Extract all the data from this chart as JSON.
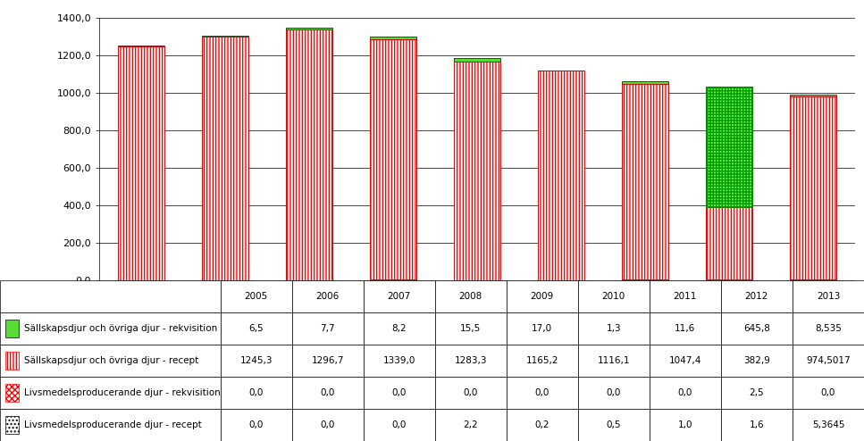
{
  "years": [
    2005,
    2006,
    2007,
    2008,
    2009,
    2010,
    2011,
    2012,
    2013
  ],
  "sallskap_rekvisition": [
    6.5,
    7.7,
    8.2,
    15.5,
    17.0,
    1.3,
    11.6,
    645.8,
    8.535
  ],
  "sallskap_recept": [
    1245.3,
    1296.7,
    1339.0,
    1283.3,
    1165.2,
    1116.1,
    1047.4,
    382.9,
    974.5017
  ],
  "livsmedel_rekvisition": [
    0.0,
    0.0,
    0.0,
    0.0,
    0.0,
    0.0,
    0.0,
    2.5,
    0.0
  ],
  "livsmedel_recept": [
    0.0,
    0.0,
    0.0,
    2.2,
    0.2,
    0.5,
    1.0,
    1.6,
    5.3645
  ],
  "ylim": [
    0,
    1400
  ],
  "ytick_vals": [
    0.0,
    200.0,
    400.0,
    600.0,
    800.0,
    1000.0,
    1200.0,
    1400.0
  ],
  "ytick_labels": [
    "0,0",
    "200,0",
    "400,0",
    "600,0",
    "800,0",
    "1000,0",
    "1200,0",
    "1400,0"
  ],
  "table_rows": [
    [
      "Sällskapsdjur och övriga djur - rekvisition",
      "6,5",
      "7,7",
      "8,2",
      "15,5",
      "17,0",
      "1,3",
      "11,6",
      "645,8",
      "8,535"
    ],
    [
      "Sällskapsdjur och övriga djur - recept",
      "1245,3",
      "1296,7",
      "1339,0",
      "1283,3",
      "1165,2",
      "1116,1",
      "1047,4",
      "382,9",
      "974,5017"
    ],
    [
      "Livsmedelsproducerande djur - rekvisition",
      "0,0",
      "0,0",
      "0,0",
      "0,0",
      "0,0",
      "0,0",
      "0,0",
      "2,5",
      "0,0"
    ],
    [
      "Livsmedelsproducerande djur - recept",
      "0,0",
      "0,0",
      "0,0",
      "2,2",
      "0,2",
      "0,5",
      "1,0",
      "1,6",
      "5,3645"
    ]
  ]
}
